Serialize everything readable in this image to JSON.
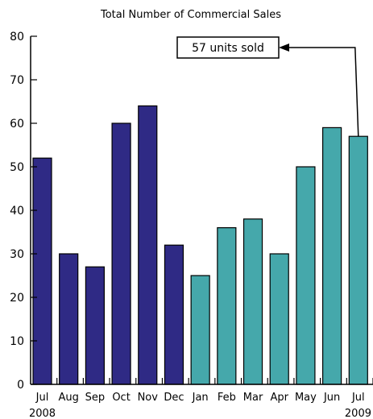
{
  "chart_data": {
    "type": "bar",
    "title": "Total Number of Commercial Sales",
    "categories": [
      "Jul",
      "Aug",
      "Sep",
      "Oct",
      "Nov",
      "Dec",
      "Jan",
      "Feb",
      "Mar",
      "Apr",
      "May",
      "Jun",
      "Jul"
    ],
    "values": [
      52,
      30,
      27,
      60,
      64,
      32,
      25,
      36,
      38,
      30,
      50,
      59,
      57
    ],
    "year_labels": [
      {
        "text": "2008",
        "category_index": 0
      },
      {
        "text": "2009",
        "category_index": 12
      }
    ],
    "bar_colors": [
      "#2f2a85",
      "#2f2a85",
      "#2f2a85",
      "#2f2a85",
      "#2f2a85",
      "#2f2a85",
      "#45a8ab",
      "#45a8ab",
      "#45a8ab",
      "#45a8ab",
      "#45a8ab",
      "#45a8ab",
      "#45a8ab"
    ],
    "ylim": [
      0,
      80
    ],
    "yticks": [
      0,
      10,
      20,
      30,
      40,
      50,
      60,
      70,
      80
    ],
    "grid": false,
    "annotation": {
      "text": "57 units sold",
      "category_index": 12
    },
    "xlabel": "",
    "ylabel": ""
  }
}
